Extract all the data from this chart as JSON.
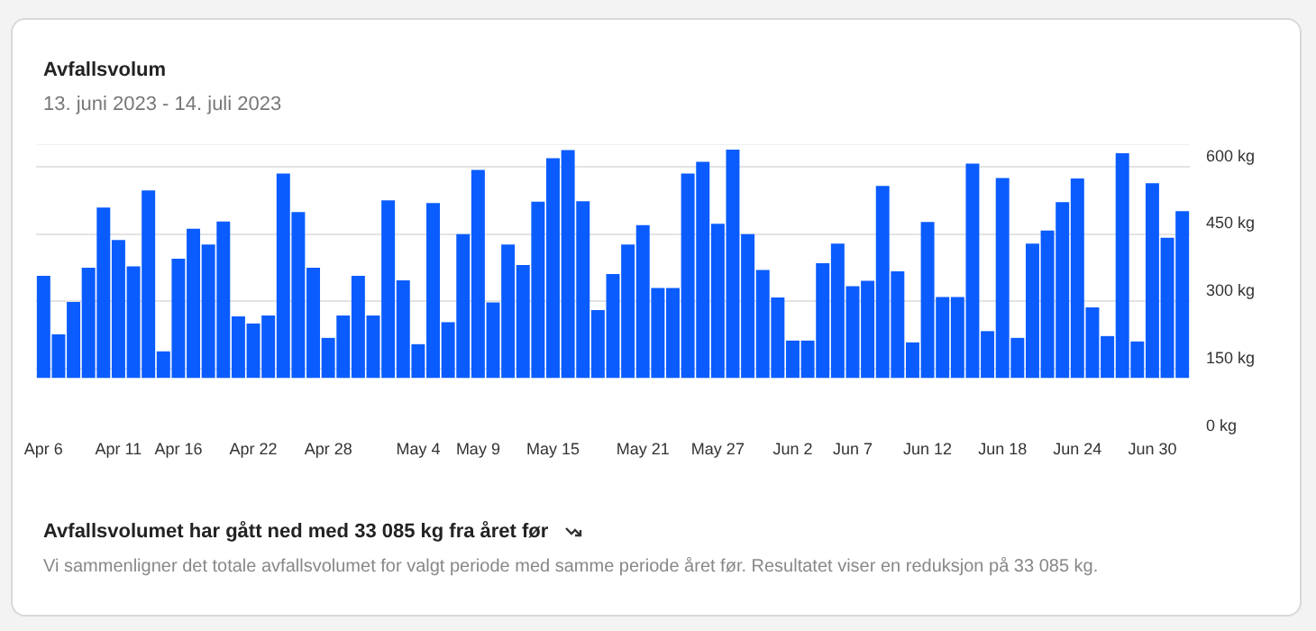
{
  "chart_data": {
    "type": "bar",
    "title": "Avfallsvolum",
    "subtitle": "13. juni 2023 - 14. juli 2023",
    "categories": [
      "Apr 6",
      null,
      null,
      null,
      null,
      "Apr 11",
      null,
      null,
      null,
      "Apr 16",
      null,
      null,
      null,
      null,
      "Apr 22",
      null,
      null,
      null,
      null,
      "Apr 28",
      null,
      null,
      null,
      null,
      null,
      "May 4",
      null,
      null,
      null,
      "May 9",
      null,
      null,
      null,
      null,
      "May 15",
      null,
      null,
      null,
      null,
      null,
      "May 21",
      null,
      null,
      null,
      null,
      "May 27",
      null,
      null,
      null,
      null,
      "Jun 2",
      null,
      null,
      null,
      "Jun 7",
      null,
      null,
      null,
      null,
      "Jun 12",
      null,
      null,
      null,
      null,
      "Jun 18",
      null,
      null,
      null,
      null,
      "Jun 24",
      null,
      null,
      null,
      null,
      "Jun 30",
      null,
      null
    ],
    "values": [
      227,
      97,
      169,
      245,
      379,
      307,
      248,
      417,
      59,
      265,
      332,
      297,
      348,
      137,
      121,
      139,
      455,
      369,
      245,
      89,
      139,
      227,
      139,
      395,
      217,
      75,
      389,
      124,
      320,
      463,
      168,
      297,
      251,
      392,
      489,
      507,
      393,
      151,
      231,
      297,
      340,
      200,
      200,
      455,
      481,
      343,
      508,
      320,
      240,
      179,
      83,
      83,
      255,
      299,
      204,
      216,
      427,
      237,
      79,
      347,
      180,
      180,
      477,
      104,
      445,
      89,
      299,
      328,
      391,
      444,
      157,
      93,
      500,
      81,
      433,
      312,
      371
    ],
    "base": [
      130,
      130,
      130,
      130,
      130,
      130,
      130,
      130,
      130,
      130,
      130,
      130,
      130,
      130,
      130,
      130,
      130,
      130,
      130,
      130,
      130,
      130,
      130,
      130,
      130,
      130,
      130,
      130,
      130,
      130,
      130,
      130,
      130,
      130,
      130,
      130,
      130,
      130,
      130,
      130,
      130,
      130,
      130,
      130,
      130,
      130,
      130,
      130,
      130,
      130,
      130,
      130,
      130,
      130,
      130,
      130,
      130,
      130,
      130,
      130,
      130,
      130,
      130,
      130,
      130,
      130,
      130,
      130,
      130,
      130,
      130,
      130,
      130,
      130,
      130,
      130,
      130
    ],
    "color": "#0a5cff",
    "ylim": [
      0,
      650
    ],
    "yticks": [
      {
        "value": 0,
        "label": "0 kg"
      },
      {
        "value": 150,
        "label": "150 kg"
      },
      {
        "value": 300,
        "label": "300 kg"
      },
      {
        "value": 450,
        "label": "450 kg"
      },
      {
        "value": 600,
        "label": "600 kg"
      }
    ],
    "grid": "y",
    "annotations": [
      "Avfallsvolumet har gått ned med 33 085 kg fra året før",
      "Vi sammenligner det totale avfallsvolumet for valgt periode med samme periode året før. Resultatet viser en reduksjon på 33 085 kg."
    ]
  }
}
